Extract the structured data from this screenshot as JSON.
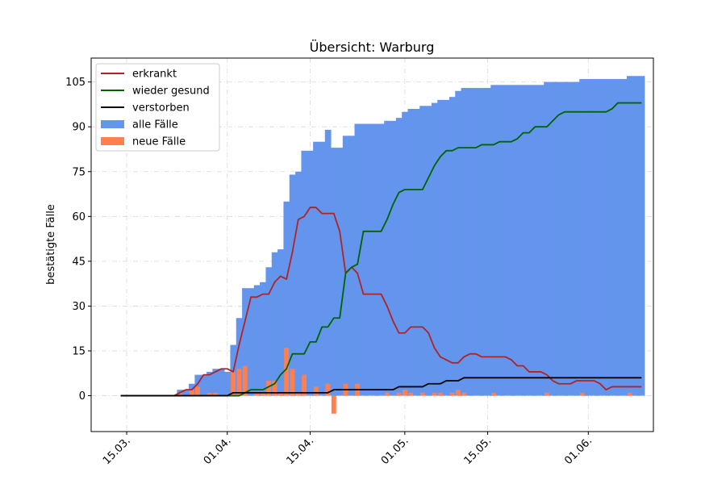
{
  "chart_data": {
    "type": "area",
    "title": "Übersicht: Warburg",
    "xlabel": "",
    "ylabel": "bestätigte Fälle",
    "ylim": [
      -12,
      113
    ],
    "yticks": [
      0,
      15,
      30,
      45,
      60,
      75,
      90,
      105
    ],
    "xticks": [
      {
        "date": "2020-03-15",
        "label": "15.03."
      },
      {
        "date": "2020-04-01",
        "label": "01.04."
      },
      {
        "date": "2020-04-15",
        "label": "15.04."
      },
      {
        "date": "2020-05-01",
        "label": "01.05."
      },
      {
        "date": "2020-05-15",
        "label": "15.05."
      },
      {
        "date": "2020-06-01",
        "label": "01.06."
      }
    ],
    "xlim": [
      "2020-03-09",
      "2020-06-12"
    ],
    "grid": true,
    "legend_position": "top-left",
    "colors": {
      "erkrankt": "#b22222",
      "wieder_gesund": "#006400",
      "verstorben": "#000000",
      "alle_faelle": "#6495ed",
      "neue_faelle": "#ff7f50"
    },
    "legend": [
      {
        "label": "erkrankt",
        "kind": "line",
        "color": "#b22222"
      },
      {
        "label": "wieder gesund",
        "kind": "line",
        "color": "#006400"
      },
      {
        "label": "verstorben",
        "kind": "line",
        "color": "#000000"
      },
      {
        "label": "alle Fälle",
        "kind": "patch",
        "color": "#6495ed"
      },
      {
        "label": "neue Fälle",
        "kind": "patch",
        "color": "#ff7f50"
      }
    ],
    "x": [
      "2020-03-14",
      "2020-03-15",
      "2020-03-16",
      "2020-03-17",
      "2020-03-18",
      "2020-03-19",
      "2020-03-20",
      "2020-03-21",
      "2020-03-22",
      "2020-03-23",
      "2020-03-24",
      "2020-03-25",
      "2020-03-26",
      "2020-03-27",
      "2020-03-28",
      "2020-03-29",
      "2020-03-30",
      "2020-03-31",
      "2020-04-01",
      "2020-04-02",
      "2020-04-03",
      "2020-04-04",
      "2020-04-05",
      "2020-04-06",
      "2020-04-07",
      "2020-04-08",
      "2020-04-09",
      "2020-04-10",
      "2020-04-11",
      "2020-04-12",
      "2020-04-13",
      "2020-04-14",
      "2020-04-15",
      "2020-04-16",
      "2020-04-17",
      "2020-04-18",
      "2020-04-19",
      "2020-04-20",
      "2020-04-21",
      "2020-04-22",
      "2020-04-23",
      "2020-04-24",
      "2020-04-25",
      "2020-04-26",
      "2020-04-27",
      "2020-04-28",
      "2020-04-29",
      "2020-04-30",
      "2020-05-01",
      "2020-05-02",
      "2020-05-03",
      "2020-05-04",
      "2020-05-05",
      "2020-05-06",
      "2020-05-07",
      "2020-05-08",
      "2020-05-09",
      "2020-05-10",
      "2020-05-11",
      "2020-05-12",
      "2020-05-13",
      "2020-05-14",
      "2020-05-15",
      "2020-05-16",
      "2020-05-17",
      "2020-05-18",
      "2020-05-19",
      "2020-05-20",
      "2020-05-21",
      "2020-05-22",
      "2020-05-23",
      "2020-05-24",
      "2020-05-25",
      "2020-05-26",
      "2020-05-27",
      "2020-05-28",
      "2020-05-29",
      "2020-05-30",
      "2020-05-31",
      "2020-06-01",
      "2020-06-02",
      "2020-06-03",
      "2020-06-04",
      "2020-06-05",
      "2020-06-06",
      "2020-06-07",
      "2020-06-08",
      "2020-06-09",
      "2020-06-10"
    ],
    "series": [
      {
        "name": "alle Fälle",
        "key": "alle_faelle",
        "kind": "step_area",
        "values": [
          0,
          0,
          0,
          0,
          0,
          0,
          0,
          0,
          0,
          0,
          2,
          2,
          4,
          7,
          7,
          8,
          9,
          9,
          8,
          17,
          26,
          36,
          36,
          37,
          38,
          43,
          48,
          49,
          65,
          74,
          75,
          82,
          82,
          85,
          85,
          89,
          83,
          83,
          87,
          87,
          91,
          91,
          91,
          91,
          91,
          92,
          92,
          93,
          95,
          96,
          96,
          97,
          97,
          98,
          99,
          99,
          100,
          102,
          103,
          103,
          103,
          103,
          103,
          104,
          104,
          104,
          104,
          104,
          104,
          104,
          104,
          104,
          105,
          105,
          105,
          105,
          105,
          105,
          106,
          106,
          106,
          106,
          106,
          106,
          106,
          106,
          107,
          107,
          107
        ]
      },
      {
        "name": "neue Fälle",
        "key": "neue_faelle",
        "kind": "bar",
        "values": [
          0,
          0,
          0,
          0,
          0,
          0,
          0,
          0,
          0,
          0,
          1,
          0,
          2,
          3,
          0,
          1,
          1,
          0,
          0,
          8,
          9,
          10,
          0,
          1,
          1,
          5,
          5,
          1,
          16,
          9,
          1,
          7,
          0,
          3,
          0,
          4,
          -6,
          0,
          4,
          0,
          4,
          0,
          0,
          0,
          0,
          1,
          0,
          1,
          2,
          1,
          0,
          1,
          0,
          1,
          1,
          0,
          1,
          2,
          1,
          0,
          0,
          0,
          0,
          1,
          0,
          0,
          0,
          0,
          0,
          0,
          0,
          0,
          1,
          0,
          0,
          0,
          0,
          0,
          1,
          0,
          0,
          0,
          0,
          0,
          0,
          0,
          1,
          0,
          0
        ]
      },
      {
        "name": "erkrankt",
        "key": "erkrankt",
        "kind": "line",
        "values": [
          0,
          0,
          0,
          0,
          0,
          0,
          0,
          0,
          0,
          0,
          1,
          2,
          2,
          4,
          7,
          7,
          8,
          9,
          9,
          8,
          17,
          25,
          33,
          33,
          34,
          34,
          38,
          40,
          39,
          48,
          59,
          60,
          63,
          63,
          61,
          61,
          61,
          55,
          41,
          43,
          41,
          34,
          34,
          34,
          34,
          30,
          25,
          21,
          21,
          23,
          23,
          23,
          21,
          16,
          13,
          12,
          11,
          11,
          13,
          14,
          14,
          13,
          13,
          13,
          13,
          13,
          12,
          10,
          10,
          8,
          8,
          8,
          7,
          5,
          4,
          4,
          4,
          5,
          5,
          5,
          5,
          4,
          2,
          3,
          3,
          3,
          3,
          3,
          3
        ]
      },
      {
        "name": "wieder gesund",
        "key": "wieder_gesund",
        "kind": "line",
        "values": [
          0,
          0,
          0,
          0,
          0,
          0,
          0,
          0,
          0,
          0,
          0,
          0,
          0,
          0,
          0,
          0,
          0,
          0,
          0,
          0,
          0,
          1,
          2,
          2,
          2,
          3,
          4,
          7,
          9,
          14,
          14,
          14,
          18,
          18,
          23,
          23,
          26,
          26,
          41,
          43,
          44,
          55,
          55,
          55,
          55,
          59,
          64,
          68,
          69,
          69,
          69,
          69,
          73,
          77,
          80,
          82,
          82,
          83,
          83,
          83,
          83,
          84,
          84,
          84,
          85,
          85,
          85,
          86,
          88,
          88,
          90,
          90,
          90,
          92,
          94,
          95,
          95,
          95,
          95,
          95,
          95,
          95,
          95,
          96,
          98,
          98,
          98,
          98,
          98
        ]
      },
      {
        "name": "verstorben",
        "key": "verstorben",
        "kind": "line",
        "values": [
          0,
          0,
          0,
          0,
          0,
          0,
          0,
          0,
          0,
          0,
          0,
          0,
          0,
          0,
          0,
          0,
          0,
          0,
          0,
          1,
          1,
          1,
          1,
          1,
          1,
          1,
          1,
          1,
          1,
          1,
          1,
          1,
          1,
          1,
          1,
          1,
          2,
          2,
          2,
          2,
          2,
          2,
          2,
          2,
          2,
          2,
          2,
          3,
          3,
          3,
          3,
          3,
          4,
          4,
          4,
          5,
          5,
          5,
          6,
          6,
          6,
          6,
          6,
          6,
          6,
          6,
          6,
          6,
          6,
          6,
          6,
          6,
          6,
          6,
          6,
          6,
          6,
          6,
          6,
          6,
          6,
          6,
          6,
          6,
          6,
          6,
          6,
          6,
          6
        ]
      }
    ]
  }
}
